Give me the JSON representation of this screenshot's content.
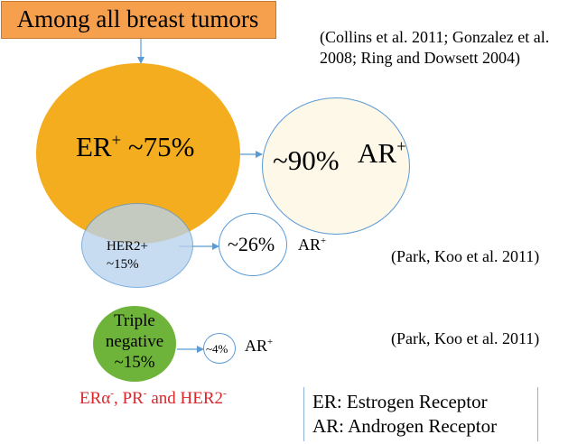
{
  "title": "Among all breast tumors",
  "reference_top": [
    "(Collins et al. 2011; Gonzalez et al.",
    "2008; Ring and Dowsett 2004)"
  ],
  "er_group": {
    "label": "ER",
    "sup": "+",
    "value": " ~75%",
    "color": "#f3ad1f"
  },
  "er_ar": {
    "percent": "~90%",
    "label": "AR",
    "sup": "+",
    "color": "#fdf8e8"
  },
  "her2_group": {
    "label_line1": "HER2+",
    "label_line2": "~15%",
    "color": "#b9d3ee"
  },
  "her2_ar": {
    "percent": "~26%",
    "label": "AR",
    "sup": "+"
  },
  "reference_her2": "(Park, Koo et al. 2011)",
  "tn_group": {
    "line1": "Triple",
    "line2": "negative",
    "line3": "~15%",
    "color": "#6fb43a"
  },
  "tn_ar": {
    "percent": "~4%",
    "label": "AR",
    "sup": "+"
  },
  "reference_tn": "(Park, Koo et al. 2011)",
  "tn_definition": {
    "er": "ERα",
    "er_sup": "-",
    "pr": ", PR",
    "pr_sup": "-",
    "her2": " and HER2",
    "her2_sup": "-",
    "color": "#d9262a"
  },
  "legend": [
    "ER: Estrogen Receptor",
    "AR: Androgen Receptor"
  ],
  "colors": {
    "accent_line": "#5b9bd5",
    "outline": "#5b9bd5"
  }
}
